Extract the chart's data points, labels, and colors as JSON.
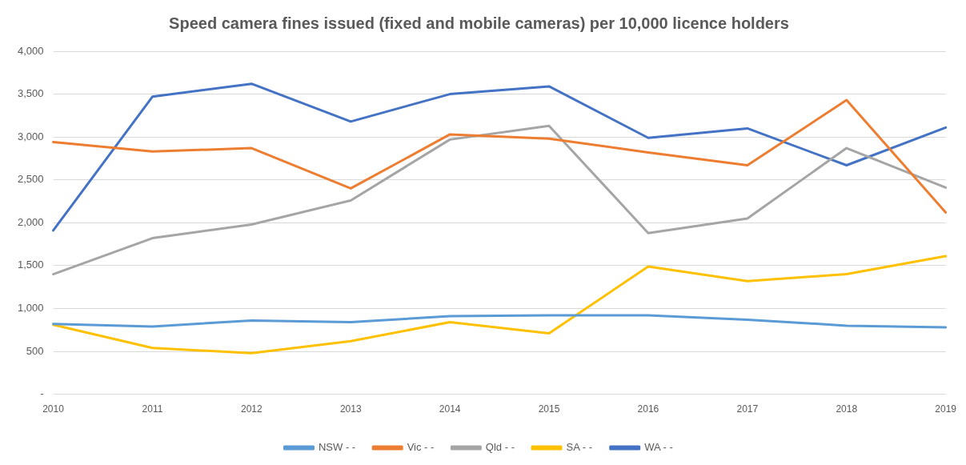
{
  "chart_data": {
    "type": "line",
    "title": "Speed camera fines issued (fixed and mobile cameras) per 10,000 licence holders",
    "categories": [
      "2010",
      "2011",
      "2012",
      "2013",
      "2014",
      "2015",
      "2016",
      "2017",
      "2018",
      "2019"
    ],
    "series": [
      {
        "name": "NSW - -",
        "color": "#5b9bd5",
        "values": [
          820,
          790,
          860,
          840,
          910,
          920,
          920,
          870,
          800,
          780
        ]
      },
      {
        "name": "Vic - -",
        "color": "#ed7d31",
        "values": [
          2940,
          2830,
          2870,
          2400,
          3030,
          2980,
          2820,
          2670,
          3430,
          2120
        ]
      },
      {
        "name": "Qld - -",
        "color": "#a5a5a5",
        "values": [
          1400,
          1820,
          1980,
          2260,
          2970,
          3130,
          1880,
          2050,
          2870,
          2410
        ]
      },
      {
        "name": "SA - -",
        "color": "#ffc000",
        "values": [
          810,
          540,
          480,
          620,
          840,
          710,
          1490,
          1320,
          1400,
          1610
        ]
      },
      {
        "name": "WA - -",
        "color": "#4472c4",
        "values": [
          1910,
          3470,
          3620,
          3180,
          3500,
          3590,
          2990,
          3100,
          2670,
          3110
        ]
      }
    ],
    "ylim": [
      0,
      4000
    ],
    "yticks": [
      {
        "value": 0,
        "label": "-"
      },
      {
        "value": 500,
        "label": "500"
      },
      {
        "value": 1000,
        "label": "1,000"
      },
      {
        "value": 1500,
        "label": "1,500"
      },
      {
        "value": 2000,
        "label": "2,000"
      },
      {
        "value": 2500,
        "label": "2,500"
      },
      {
        "value": 3000,
        "label": "3,000"
      },
      {
        "value": 3500,
        "label": "3,500"
      },
      {
        "value": 4000,
        "label": "4,000"
      }
    ],
    "grid": "y",
    "legend": "bottom",
    "marker": "none",
    "line_style": "solid"
  }
}
